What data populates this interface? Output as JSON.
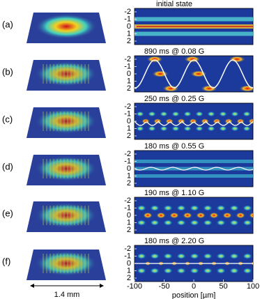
{
  "panels": [
    {
      "label": "(a)",
      "title": "initial state"
    },
    {
      "label": "(b)",
      "title": "890 ms @ 0.08 G"
    },
    {
      "label": "(c)",
      "title": "250 ms @ 0.25 G"
    },
    {
      "label": "(d)",
      "title": "180 ms @ 0.55 G"
    },
    {
      "label": "(e)",
      "title": "190 ms @ 1.10 G"
    },
    {
      "label": "(f)",
      "title": "180 ms @ 2.20 G"
    }
  ],
  "y_ticks": [
    "-2",
    "-1",
    "0",
    "1",
    "2"
  ],
  "x_ticks": [
    "-100",
    "-50",
    "0",
    "50",
    "100"
  ],
  "x_axis_label": "position [µm]",
  "scale_label": "1.4 mm"
}
